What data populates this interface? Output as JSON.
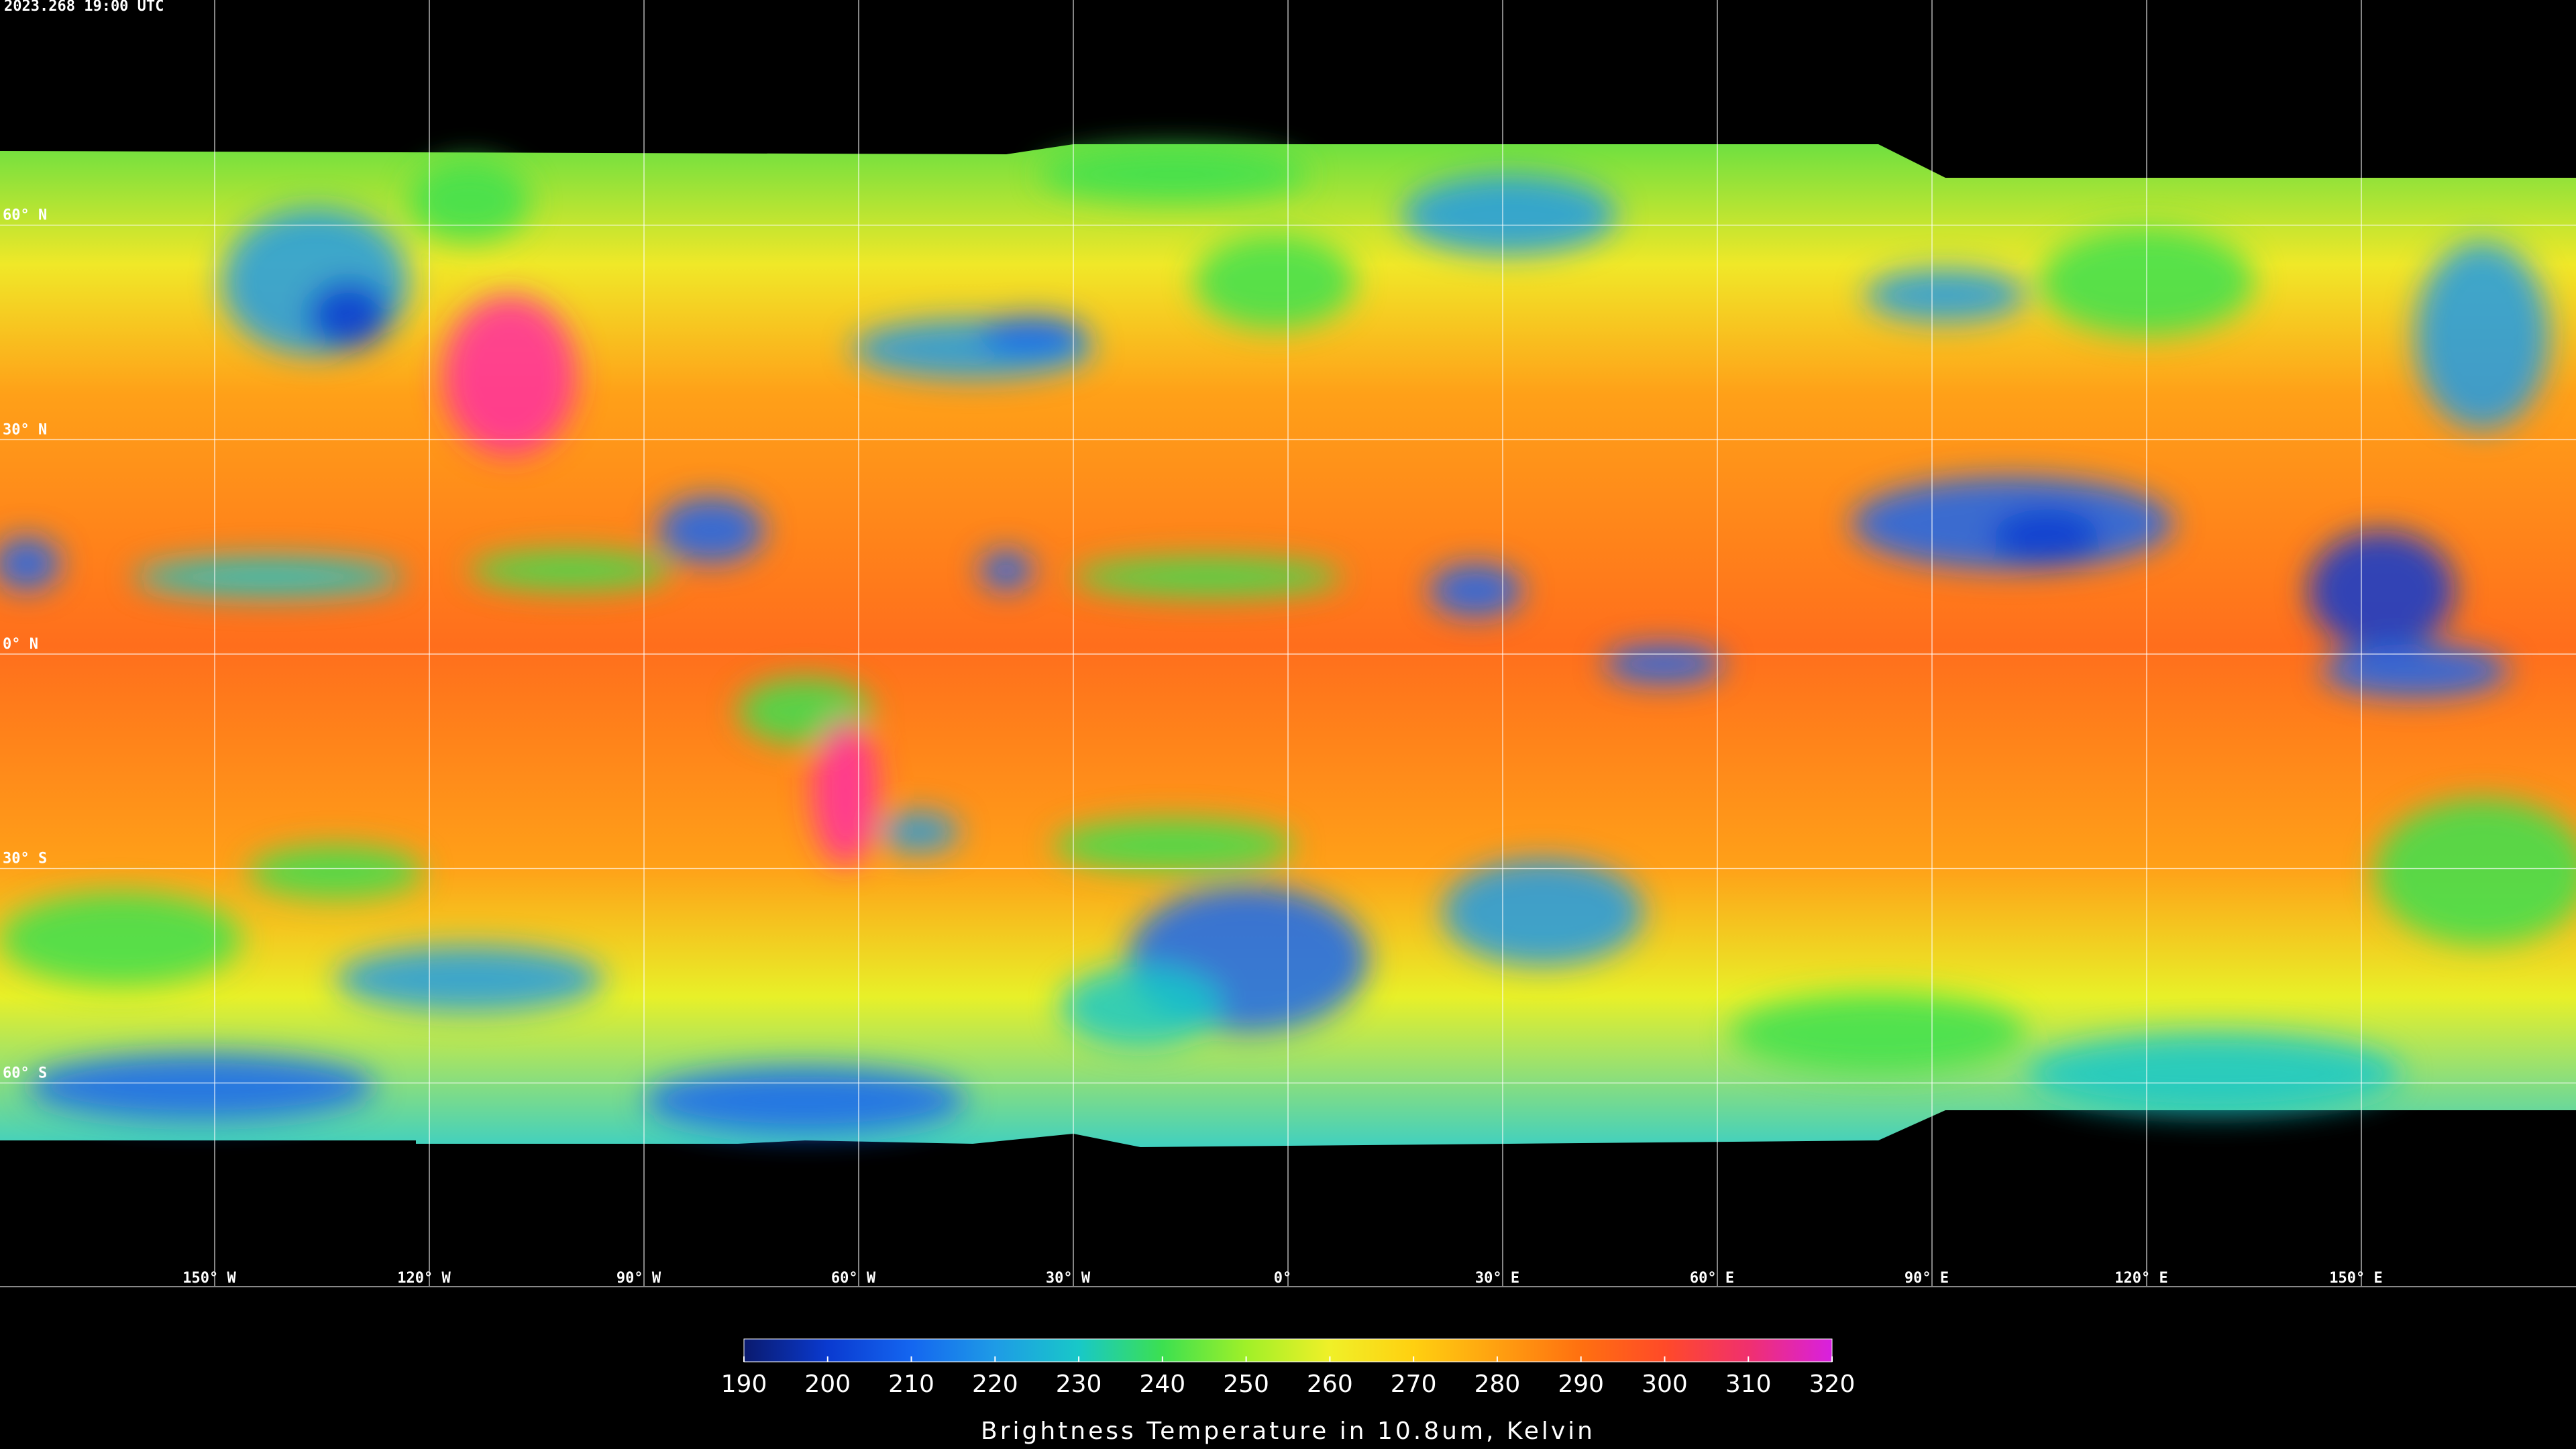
{
  "header": {
    "timestamp": "2023.268 19:00 UTC"
  },
  "map": {
    "lonlim": [
      -180,
      180
    ],
    "latlim": [
      -90,
      90
    ],
    "lat_lines": [
      {
        "value": 60,
        "label": "60° N"
      },
      {
        "value": 30,
        "label": "30° N"
      },
      {
        "value": 0,
        "label": "0° N"
      },
      {
        "value": -30,
        "label": "30° S"
      },
      {
        "value": -60,
        "label": "60° S"
      }
    ],
    "lon_lines": [
      {
        "value": -150,
        "label": "150° W"
      },
      {
        "value": -120,
        "label": "120° W"
      },
      {
        "value": -90,
        "label": "90° W"
      },
      {
        "value": -60,
        "label": "60° W"
      },
      {
        "value": -30,
        "label": "30° W"
      },
      {
        "value": 0,
        "label": "0°"
      },
      {
        "value": 30,
        "label": "30° E"
      },
      {
        "value": 60,
        "label": "60° E"
      },
      {
        "value": 90,
        "label": "90° E"
      },
      {
        "value": 120,
        "label": "120° E"
      },
      {
        "value": 150,
        "label": "150° E"
      }
    ]
  },
  "colorbar": {
    "lim": [
      190,
      320
    ],
    "ticks": [
      190,
      200,
      210,
      220,
      230,
      240,
      250,
      260,
      270,
      280,
      290,
      300,
      310,
      320
    ],
    "colors": [
      "#0a1a6e",
      "#0a3ad0",
      "#1466f0",
      "#1e9be6",
      "#18c8c8",
      "#3ce050",
      "#a0f028",
      "#f0f028",
      "#ffd010",
      "#ffa010",
      "#ff7010",
      "#ff4a28",
      "#f0306e",
      "#d820e0"
    ],
    "label": "Brightness Temperature in 10.8um, Kelvin"
  }
}
